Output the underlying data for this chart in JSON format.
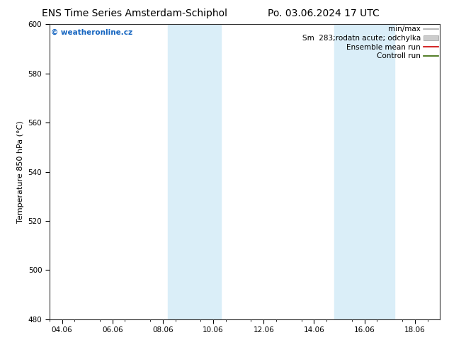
{
  "title_left": "ENS Time Series Amsterdam-Schiphol",
  "title_right": "Po. 03.06.2024 17 UTC",
  "ylabel": "Temperature 850 hPa (°C)",
  "xlim": [
    3.5,
    19.0
  ],
  "ylim": [
    480,
    600
  ],
  "yticks": [
    480,
    500,
    520,
    540,
    560,
    580,
    600
  ],
  "xtick_labels": [
    "04.06",
    "06.06",
    "08.06",
    "10.06",
    "12.06",
    "14.06",
    "16.06",
    "18.06"
  ],
  "xtick_positions": [
    4.0,
    6.0,
    8.0,
    10.0,
    12.0,
    14.0,
    16.0,
    18.0
  ],
  "shaded_bands": [
    {
      "x_start": 8.2,
      "x_end": 10.3,
      "color": "#daeef8"
    },
    {
      "x_start": 14.8,
      "x_end": 17.2,
      "color": "#daeef8"
    }
  ],
  "watermark_text": "© weatheronline.cz",
  "watermark_color": "#1565c0",
  "legend_entries": [
    {
      "label": "min/max",
      "color": "#aaaaaa",
      "linewidth": 1.2,
      "patch": false
    },
    {
      "label": "Sm  283;rodatn acute; odchylka",
      "color": "#cccccc",
      "linewidth": 8,
      "patch": true
    },
    {
      "label": "Ensemble mean run",
      "color": "#cc0000",
      "linewidth": 1.2,
      "patch": false
    },
    {
      "label": "Controll run",
      "color": "#336600",
      "linewidth": 1.2,
      "patch": false
    }
  ],
  "background_color": "#ffffff",
  "plot_bg_color": "#ffffff",
  "title_fontsize": 10,
  "label_fontsize": 8,
  "tick_fontsize": 7.5,
  "legend_fontsize": 7.5,
  "watermark_fontsize": 7.5
}
